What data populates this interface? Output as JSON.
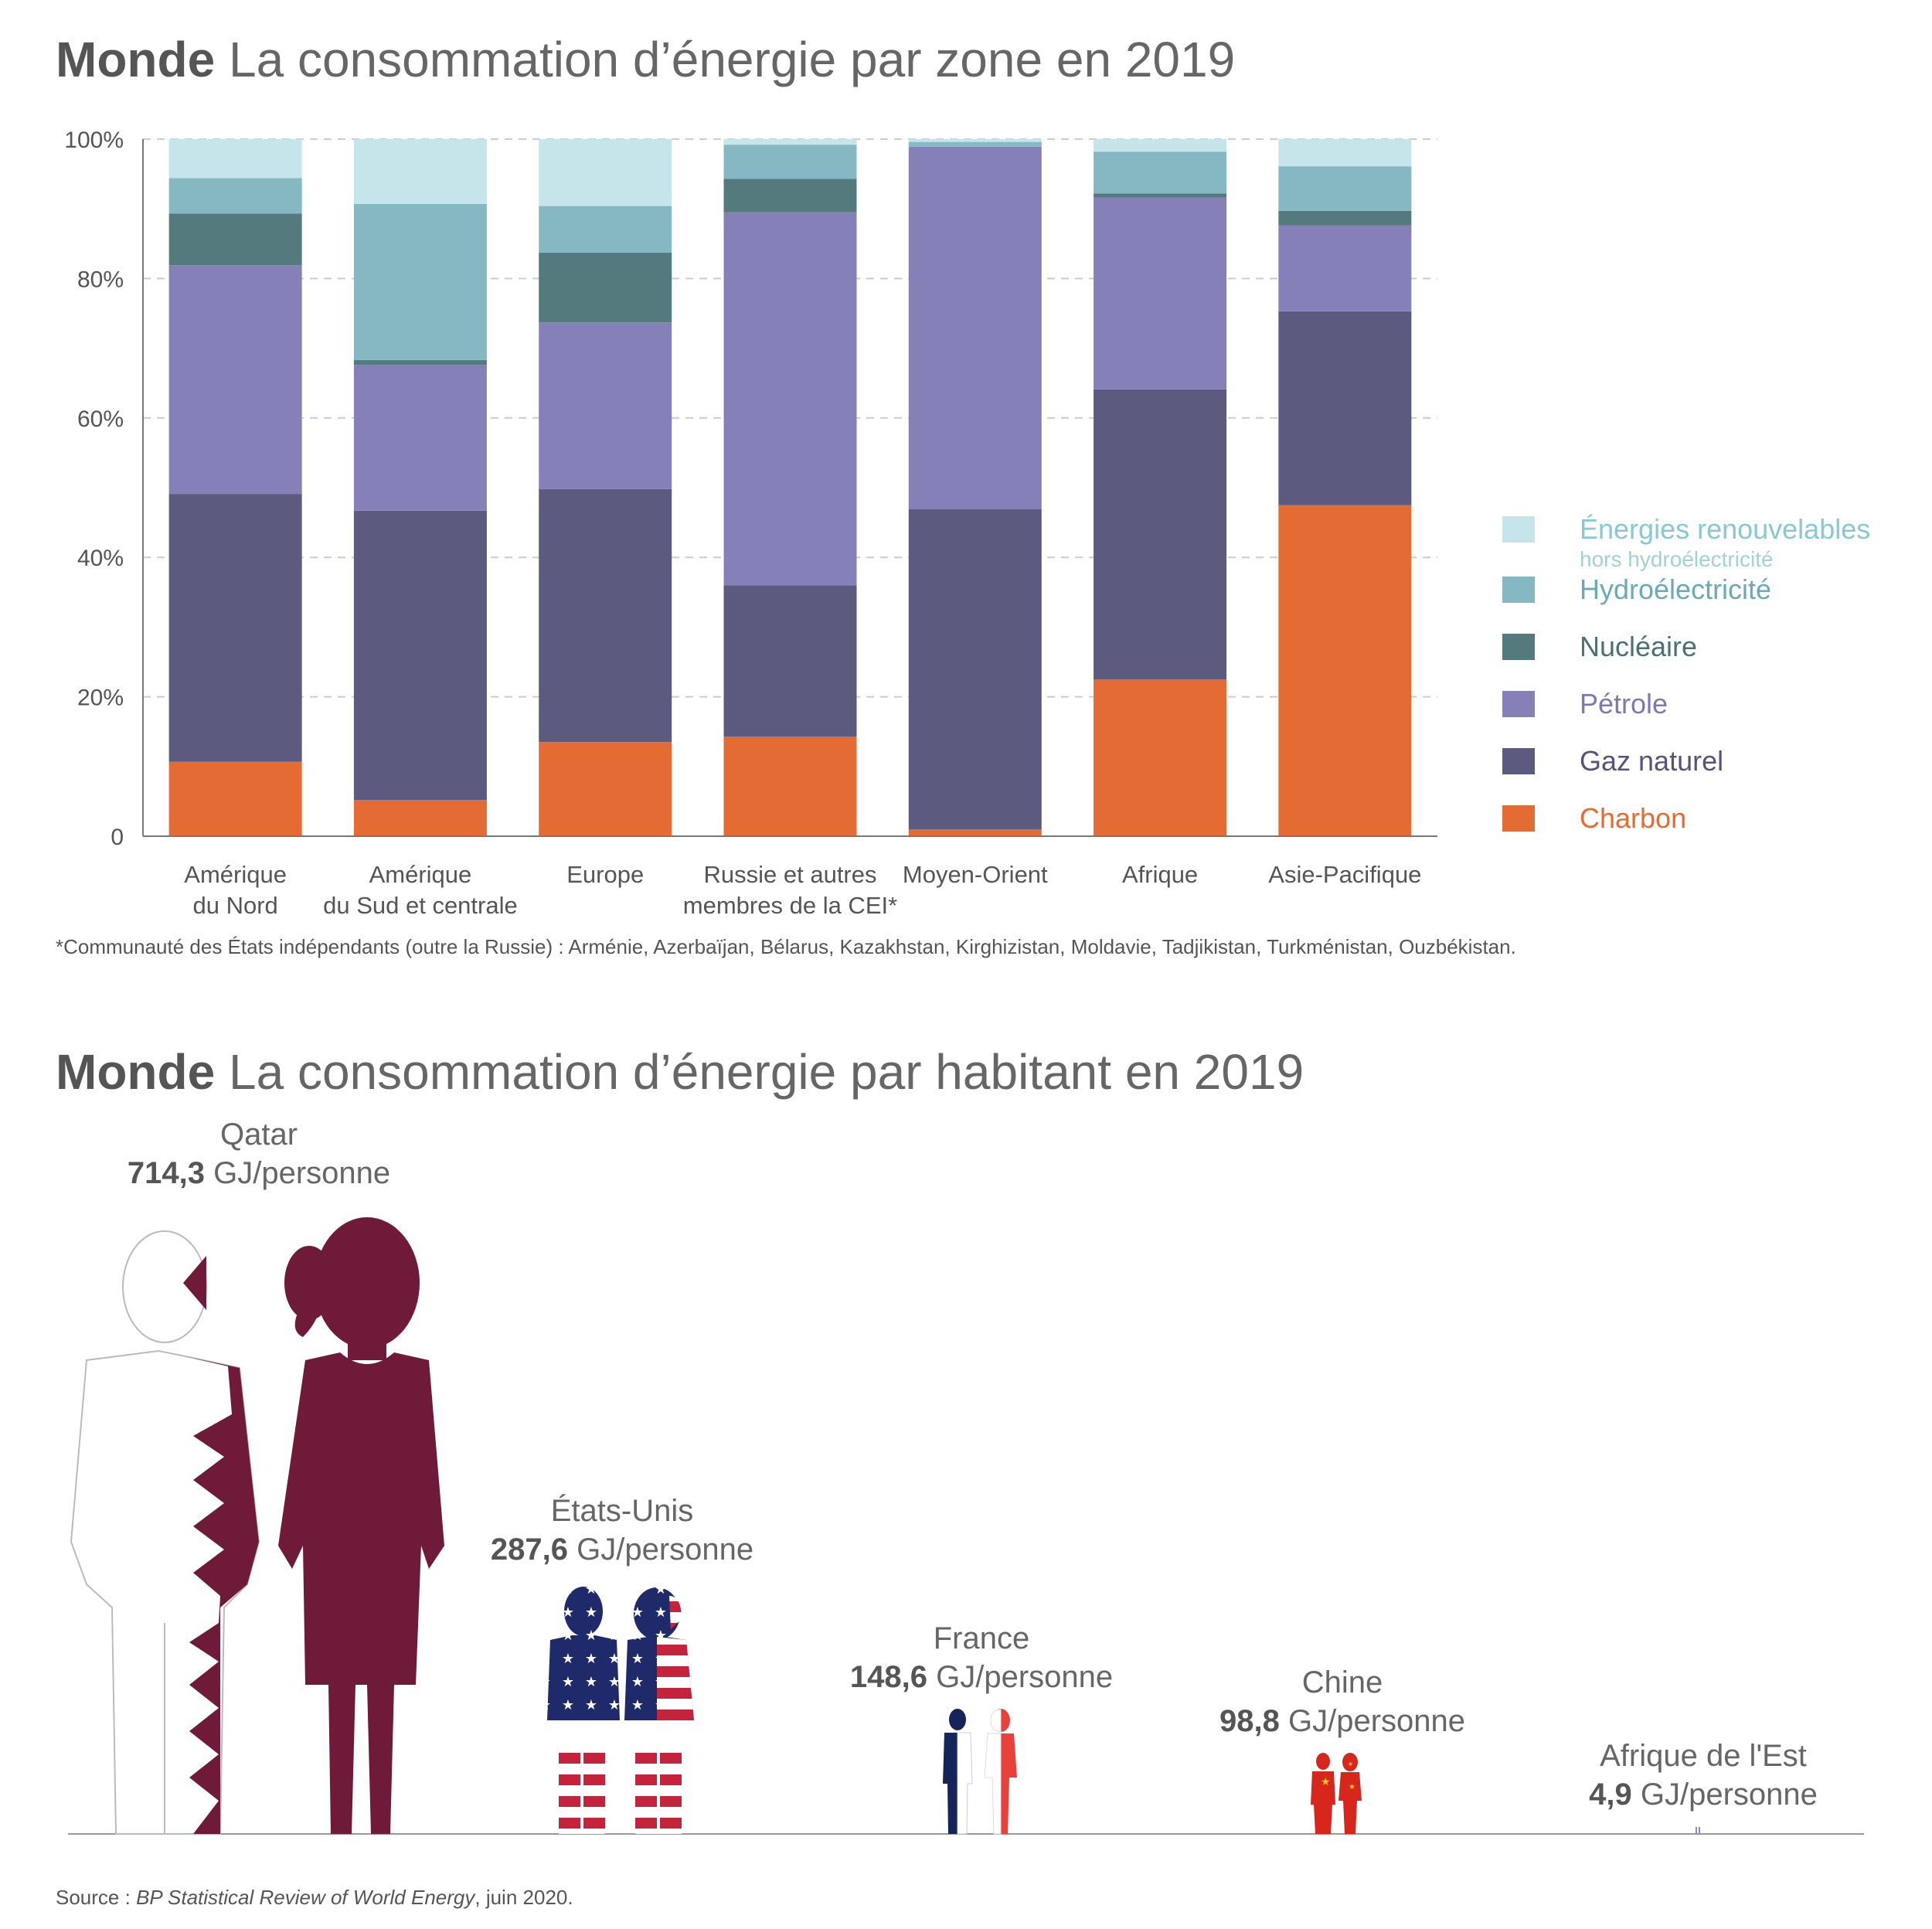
{
  "chart1_title": {
    "bold": "Monde",
    "rest": "La consommation d’énergie par zone en 2019"
  },
  "chart_data": [
    {
      "type": "bar",
      "stacked": true,
      "title": "Monde La consommation d’énergie par zone en 2019",
      "categories": [
        [
          "Amérique",
          "du Nord"
        ],
        [
          "Amérique",
          "du Sud et centrale"
        ],
        [
          "Europe"
        ],
        [
          "Russie et autres",
          "membres de la CEI*"
        ],
        [
          "Moyen-Orient"
        ],
        [
          "Afrique"
        ],
        [
          "Asie-Pacifique"
        ]
      ],
      "ylim": [
        0,
        100
      ],
      "yticks": [
        {
          "v": 0,
          "label": "0"
        },
        {
          "v": 20,
          "label": "20%"
        },
        {
          "v": 40,
          "label": "40%"
        },
        {
          "v": 60,
          "label": "60%"
        },
        {
          "v": 80,
          "label": "80%"
        },
        {
          "v": 100,
          "label": "100%"
        }
      ],
      "grid": true,
      "legend_position": "right",
      "series": [
        {
          "name": "Charbon",
          "color": "#e46b33",
          "values": [
            10.7,
            5.2,
            13.5,
            14.3,
            1.0,
            22.5,
            47.5
          ]
        },
        {
          "name": "Gaz naturel",
          "color": "#5c5a7f",
          "values": [
            38.4,
            41.5,
            36.3,
            21.7,
            45.9,
            41.6,
            27.8
          ]
        },
        {
          "name": "Pétrole",
          "color": "#8580b7",
          "values": [
            32.8,
            20.9,
            23.9,
            53.5,
            52.0,
            27.5,
            12.3
          ]
        },
        {
          "name": "Nucléaire",
          "color": "#547a7e",
          "values": [
            7.4,
            0.7,
            10.0,
            4.8,
            0.0,
            0.6,
            2.1
          ]
        },
        {
          "name": "Hydroélectricité",
          "color": "#86b8c3",
          "values": [
            5.1,
            22.4,
            6.7,
            4.9,
            0.7,
            6.0,
            6.4
          ]
        },
        {
          "name": "Énergies renouvelables hors hydroélectricité",
          "color": "#c5e5ea",
          "values": [
            5.6,
            9.3,
            9.6,
            0.8,
            0.4,
            1.8,
            3.9
          ]
        }
      ]
    },
    {
      "type": "pictogram",
      "title": "Monde La consommation d’énergie par habitant en 2019",
      "unit": "GJ/personne",
      "items": [
        {
          "country": "Qatar",
          "value": 714.3,
          "display": "714,3"
        },
        {
          "country": "États-Unis",
          "value": 287.6,
          "display": "287,6"
        },
        {
          "country": "France",
          "value": 148.6,
          "display": "148,6"
        },
        {
          "country": "Chine",
          "value": 98.8,
          "display": "98,8"
        },
        {
          "country": "Afrique de l'Est",
          "value": 4.9,
          "display": "4,9"
        }
      ]
    }
  ],
  "legend": [
    {
      "label": "Énergies renouvelables",
      "sub": "hors hydroélectricité",
      "color": "#c5e5ea",
      "text_color": "#86c8d3"
    },
    {
      "label": "Hydroélectricité",
      "color": "#86b8c3",
      "text_color": "#6aaab5"
    },
    {
      "label": "Nucléaire",
      "color": "#547a7e",
      "text_color": "#4a7175"
    },
    {
      "label": "Pétrole",
      "color": "#8580b7",
      "text_color": "#7d78b3"
    },
    {
      "label": "Gaz naturel",
      "color": "#5c5a7f",
      "text_color": "#55537a"
    },
    {
      "label": "Charbon",
      "color": "#e46b33",
      "text_color": "#e46b33"
    }
  ],
  "footnote": "*Communauté des États indépendants (outre la Russie) : Arménie, Azerbaïjan, Bélarus, Kazakhstan, Kirghizistan, Moldavie, Tadjikistan, Turkménistan, Ouzbékistan.",
  "chart2_title": {
    "bold": "Monde",
    "rest": "La consommation d’énergie par habitant en 2019"
  },
  "people": [
    {
      "country": "Qatar",
      "value": "714,3",
      "unit": "GJ/personne"
    },
    {
      "country": "États-Unis",
      "value": "287,6",
      "unit": "GJ/personne"
    },
    {
      "country": "France",
      "value": "148,6",
      "unit": "GJ/personne"
    },
    {
      "country": "Chine",
      "value": "98,8",
      "unit": "GJ/personne"
    },
    {
      "country": "Afrique de l'Est",
      "value": "4,9",
      "unit": "GJ/personne"
    }
  ],
  "source": {
    "prefix": "Source : ",
    "title": "BP Statistical Review of World Energy",
    "suffix": ", juin 2020."
  },
  "colors": {
    "qatar": "#701a3a",
    "us_blue": "#1f2a6b",
    "us_red": "#c4243b",
    "fr_blue": "#15255a",
    "fr_red": "#e8403a",
    "cn_red": "#d7271d",
    "cn_yellow": "#f3c623",
    "ea": "#8a88c2"
  }
}
